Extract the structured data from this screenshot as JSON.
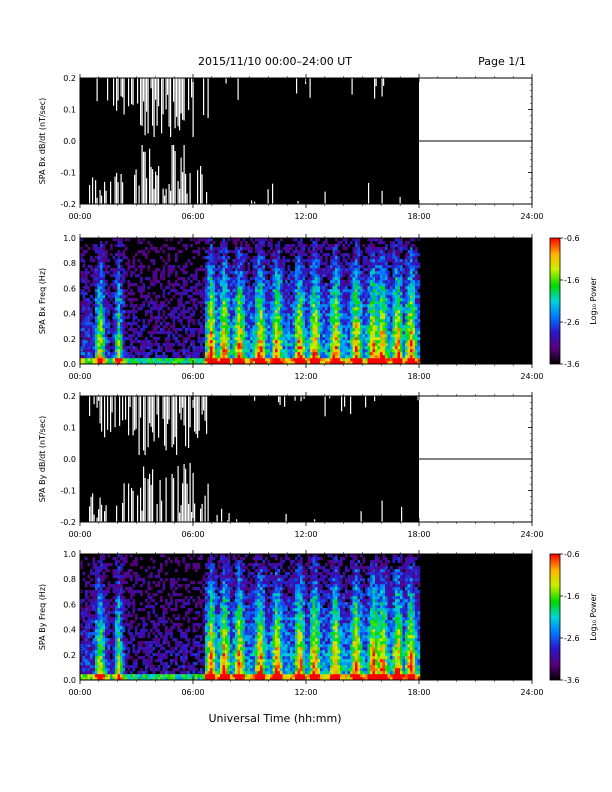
{
  "header": {
    "date_range": "2015/11/10  00:00–24:00 UT",
    "page": "Page 1/1"
  },
  "footer": {
    "xlabel": "Universal Time (hh:mm)"
  },
  "colors": {
    "data_fill": "#000000",
    "no_data_background": "#000000",
    "axis": "#000000"
  },
  "chart_data": [
    {
      "type": "area",
      "id": "bx_ts",
      "ylabel": "SPA Bx dB/dt (nT/sec)",
      "x_ticks": [
        "00:00",
        "06:00",
        "12:00",
        "18:00",
        "24:00"
      ],
      "y_ticks": [
        "0.2",
        "0.1",
        "0.0",
        "-0.1",
        "-0.2"
      ],
      "xlim": [
        0,
        24
      ],
      "ylim": [
        -0.2,
        0.2
      ],
      "data_end_hour": 18,
      "after_data_value": 0.0
    },
    {
      "type": "heatmap",
      "id": "bx_spec",
      "ylabel": "SPA Bx Freq (Hz)",
      "x_ticks": [
        "00:00",
        "06:00",
        "12:00",
        "18:00",
        "24:00"
      ],
      "y_ticks": [
        "1.0",
        "0.8",
        "0.6",
        "0.4",
        "0.2",
        "0.0"
      ],
      "xlim": [
        0,
        24
      ],
      "ylim": [
        0,
        1.0
      ],
      "data_end_hour": 18,
      "colorbar": {
        "label": "Log₁₀ Power",
        "ticks": [
          "-0.6",
          "-1.6",
          "-2.6",
          "-3.6"
        ],
        "range": [
          -3.6,
          -0.6
        ]
      }
    },
    {
      "type": "area",
      "id": "by_ts",
      "ylabel": "SPA By dB/dt (nT/sec)",
      "x_ticks": [
        "00:00",
        "06:00",
        "12:00",
        "18:00",
        "24:00"
      ],
      "y_ticks": [
        "0.2",
        "0.1",
        "0.0",
        "-0.1",
        "-0.2"
      ],
      "xlim": [
        0,
        24
      ],
      "ylim": [
        -0.2,
        0.2
      ],
      "data_end_hour": 18,
      "after_data_value": 0.0
    },
    {
      "type": "heatmap",
      "id": "by_spec",
      "ylabel": "SPA By Freq (Hz)",
      "x_ticks": [
        "00:00",
        "06:00",
        "12:00",
        "18:00",
        "24:00"
      ],
      "y_ticks": [
        "1.0",
        "0.8",
        "0.6",
        "0.4",
        "0.2",
        "0.0"
      ],
      "xlim": [
        0,
        24
      ],
      "ylim": [
        0,
        1.0
      ],
      "data_end_hour": 18,
      "colorbar": {
        "label": "Log₁₀ Power",
        "ticks": [
          "-0.6",
          "-1.6",
          "-2.6",
          "-3.6"
        ],
        "range": [
          -3.6,
          -0.6
        ]
      }
    }
  ]
}
